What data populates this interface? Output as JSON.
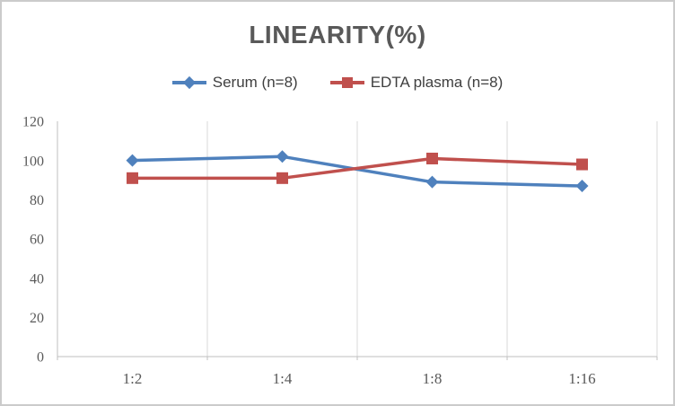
{
  "title": "LINEARITY(%)",
  "chart_data": {
    "type": "line",
    "title": "LINEARITY(%)",
    "categories": [
      "1:2",
      "1:4",
      "1:8",
      "1:16"
    ],
    "series": [
      {
        "name": "Serum (n=8)",
        "color": "#4F81BD",
        "marker": "diamond",
        "values": [
          100,
          102,
          89,
          87
        ]
      },
      {
        "name": "EDTA plasma (n=8)",
        "color": "#C0504D",
        "marker": "square",
        "values": [
          91,
          91,
          101,
          98
        ]
      }
    ],
    "xlabel": "",
    "ylabel": "",
    "ylim": [
      0,
      120
    ],
    "yticks": [
      0,
      20,
      40,
      60,
      80,
      100,
      120
    ],
    "grid": "vertical-only",
    "legend_position": "top",
    "colors": {
      "axis_line": "#BFBFBF",
      "gridline": "#D9D9D9",
      "tick_label": "#595959",
      "title_text": "#595959",
      "legend_text": "#3F3F3F"
    }
  }
}
